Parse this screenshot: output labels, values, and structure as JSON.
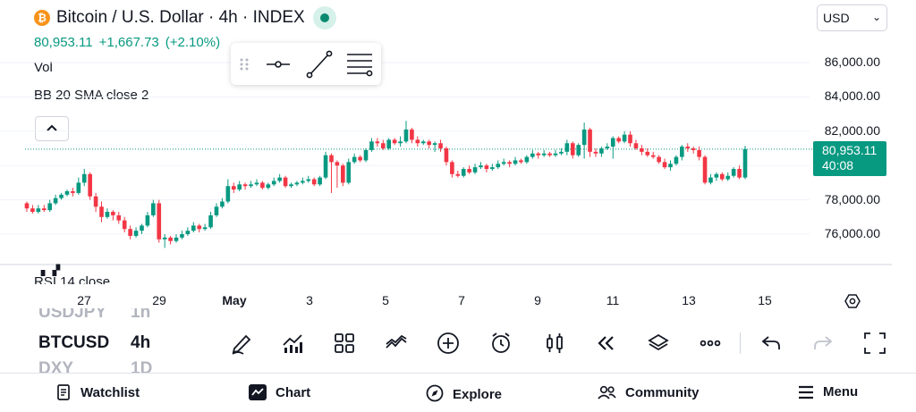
{
  "header": {
    "symbol_title": "Bitcoin / U.S. Dollar · 4h · INDEX",
    "coin_glyph": "₿",
    "currency": "USD"
  },
  "quote": {
    "last": "80,953.11",
    "change": "+1,667.73",
    "change_pct": "(+2.10%)"
  },
  "indicators": {
    "vol_label": "Vol",
    "bb_label": "BB 20 SMA close 2",
    "rsi_label": "RSI 14 close"
  },
  "price_axis": [
    "86,000.00",
    "84,000.00",
    "82,000.00",
    "78,000.00",
    "76,000.00"
  ],
  "last_price_tag": {
    "price": "80,953.11",
    "countdown": "40:08"
  },
  "time_axis": [
    "27",
    "29",
    "May",
    "3",
    "5",
    "7",
    "9",
    "11",
    "13",
    "15"
  ],
  "symbol_picker": [
    {
      "symbol": "USDJPY",
      "timeframe": "1h"
    },
    {
      "symbol": "BTCUSD",
      "timeframe": "4h"
    },
    {
      "symbol": "DXY",
      "timeframe": "1D"
    }
  ],
  "toolbar_icons": [
    "draw-icon",
    "indicators-icon",
    "layouts-icon",
    "compare-icon",
    "add-icon",
    "alert-icon",
    "chart-type-icon",
    "replay-icon",
    "layers-icon",
    "more-icon",
    "undo-icon",
    "redo-icon",
    "fullscreen-icon"
  ],
  "bottom_nav": [
    {
      "label": "Watchlist",
      "icon": "watchlist-icon"
    },
    {
      "label": "Chart",
      "icon": "chart-icon"
    },
    {
      "label": "Explore",
      "icon": "explore-icon"
    },
    {
      "label": "Community",
      "icon": "community-icon"
    },
    {
      "label": "Menu",
      "icon": "menu-icon"
    }
  ],
  "colors": {
    "up": "#089981",
    "down": "#f23645",
    "accent": "#089981"
  },
  "chart_data": {
    "type": "candlestick",
    "timeframe": "4h",
    "y_range": [
      74500,
      86800
    ],
    "candles": [
      [
        77800,
        77500,
        77900,
        77300
      ],
      [
        77500,
        77300,
        77700,
        77200
      ],
      [
        77300,
        77500,
        77700,
        77200
      ],
      [
        77500,
        77400,
        77700,
        77300
      ],
      [
        77400,
        77800,
        78000,
        77300
      ],
      [
        77800,
        78100,
        78300,
        77700
      ],
      [
        78100,
        78300,
        78400,
        78000
      ],
      [
        78300,
        78500,
        78600,
        78200
      ],
      [
        78500,
        78400,
        78700,
        78200
      ],
      [
        78400,
        79000,
        79300,
        78300
      ],
      [
        79000,
        79500,
        79800,
        78800
      ],
      [
        79500,
        78200,
        79600,
        78000
      ],
      [
        78200,
        77600,
        78400,
        77300
      ],
      [
        77600,
        77000,
        77900,
        76700
      ],
      [
        77000,
        77300,
        77500,
        76900
      ],
      [
        77300,
        77100,
        77400,
        76800
      ],
      [
        77100,
        76800,
        77300,
        76600
      ],
      [
        76800,
        76300,
        77000,
        76100
      ],
      [
        76300,
        75900,
        76500,
        75700
      ],
      [
        75900,
        76200,
        76400,
        75800
      ],
      [
        76200,
        76500,
        76600,
        76000
      ],
      [
        76500,
        77100,
        77300,
        76400
      ],
      [
        77100,
        77800,
        78000,
        77000
      ],
      [
        77800,
        75700,
        78000,
        75500
      ],
      [
        75700,
        75800,
        76000,
        75200
      ],
      [
        75800,
        75600,
        75900,
        75400
      ],
      [
        75600,
        75800,
        76000,
        75500
      ],
      [
        75800,
        76000,
        76200,
        75700
      ],
      [
        76000,
        76200,
        76400,
        75900
      ],
      [
        76200,
        76500,
        76700,
        76100
      ],
      [
        76500,
        76300,
        76600,
        76100
      ],
      [
        76300,
        76400,
        76600,
        76200
      ],
      [
        76400,
        77100,
        77300,
        76300
      ],
      [
        77100,
        77600,
        77800,
        77000
      ],
      [
        77600,
        77900,
        78100,
        77500
      ],
      [
        77900,
        78800,
        79200,
        77800
      ],
      [
        78800,
        78600,
        79000,
        78400
      ],
      [
        78600,
        78900,
        79100,
        78500
      ],
      [
        78900,
        78800,
        79000,
        78600
      ],
      [
        78800,
        78900,
        79100,
        78700
      ],
      [
        78900,
        79000,
        79200,
        78800
      ],
      [
        79000,
        78700,
        79100,
        78600
      ],
      [
        78700,
        78900,
        79000,
        78600
      ],
      [
        78900,
        79100,
        79300,
        78800
      ],
      [
        79100,
        79300,
        79500,
        79000
      ],
      [
        79300,
        78800,
        79400,
        78700
      ],
      [
        78800,
        78900,
        79000,
        78700
      ],
      [
        78900,
        79000,
        79100,
        78800
      ],
      [
        79000,
        79100,
        79300,
        78900
      ],
      [
        79100,
        79200,
        79400,
        79000
      ],
      [
        79200,
        78900,
        79300,
        78800
      ],
      [
        78900,
        79300,
        79400,
        78800
      ],
      [
        79300,
        80600,
        80800,
        79200
      ],
      [
        80600,
        80200,
        80700,
        78400
      ],
      [
        80200,
        80000,
        80300,
        78700
      ],
      [
        80000,
        79000,
        80100,
        78800
      ],
      [
        79000,
        80200,
        80400,
        78900
      ],
      [
        80200,
        80500,
        80700,
        80100
      ],
      [
        80500,
        80300,
        80600,
        80200
      ],
      [
        80300,
        80900,
        81000,
        80200
      ],
      [
        80900,
        81400,
        81600,
        80800
      ],
      [
        81400,
        81300,
        81600,
        81100
      ],
      [
        81300,
        81000,
        81500,
        80900
      ],
      [
        81000,
        81500,
        81600,
        80900
      ],
      [
        81500,
        81300,
        81600,
        81200
      ],
      [
        81300,
        81400,
        81700,
        81100
      ],
      [
        81400,
        82100,
        82600,
        81300
      ],
      [
        82100,
        81500,
        82200,
        81300
      ],
      [
        81500,
        81300,
        81700,
        81100
      ],
      [
        81300,
        81400,
        81500,
        81200
      ],
      [
        81400,
        81200,
        81500,
        81000
      ],
      [
        81200,
        81300,
        81400,
        80800
      ],
      [
        81300,
        81000,
        81500,
        80800
      ],
      [
        81000,
        80200,
        81100,
        80000
      ],
      [
        80200,
        79500,
        80300,
        79300
      ],
      [
        79500,
        79400,
        79700,
        79300
      ],
      [
        79400,
        79800,
        79900,
        79300
      ],
      [
        79800,
        79600,
        80000,
        79500
      ],
      [
        79600,
        79900,
        80100,
        79500
      ],
      [
        79900,
        80000,
        80200,
        79800
      ],
      [
        80000,
        79800,
        80100,
        79600
      ],
      [
        79800,
        79900,
        80100,
        79700
      ],
      [
        79900,
        80100,
        80300,
        79800
      ],
      [
        80100,
        80200,
        80400,
        80000
      ],
      [
        80200,
        80100,
        80300,
        79900
      ],
      [
        80100,
        80300,
        80500,
        80000
      ],
      [
        80300,
        80200,
        80400,
        80100
      ],
      [
        80200,
        80500,
        80600,
        80100
      ],
      [
        80500,
        80700,
        80900,
        80400
      ],
      [
        80700,
        80600,
        80800,
        80400
      ],
      [
        80600,
        80700,
        80900,
        80500
      ],
      [
        80700,
        80600,
        80800,
        80500
      ],
      [
        80600,
        80700,
        80900,
        80500
      ],
      [
        80700,
        80800,
        81000,
        80600
      ],
      [
        80800,
        81300,
        81500,
        80600
      ],
      [
        81300,
        80600,
        81400,
        80400
      ],
      [
        80600,
        81200,
        81300,
        80500
      ],
      [
        81200,
        82100,
        82500,
        80400
      ],
      [
        82100,
        80800,
        82200,
        80500
      ],
      [
        80800,
        80700,
        81000,
        80500
      ],
      [
        80700,
        81000,
        81100,
        80500
      ],
      [
        81000,
        81100,
        81300,
        80900
      ],
      [
        81100,
        81600,
        81700,
        80400
      ],
      [
        81600,
        81400,
        81700,
        81300
      ],
      [
        81400,
        81800,
        82000,
        81300
      ],
      [
        81800,
        81300,
        82000,
        81100
      ],
      [
        81300,
        81000,
        81500,
        80900
      ],
      [
        81000,
        80800,
        81200,
        80600
      ],
      [
        80800,
        80600,
        81000,
        80500
      ],
      [
        80600,
        80500,
        80800,
        80400
      ],
      [
        80500,
        80200,
        80600,
        80100
      ],
      [
        80200,
        79900,
        80400,
        79800
      ],
      [
        79900,
        80100,
        80300,
        79700
      ],
      [
        80100,
        80500,
        80600,
        80000
      ],
      [
        80500,
        81100,
        81200,
        80300
      ],
      [
        81100,
        81000,
        81300,
        80800
      ],
      [
        81000,
        80900,
        81100,
        80700
      ],
      [
        80900,
        80500,
        81100,
        80300
      ],
      [
        80500,
        79000,
        80600,
        78900
      ],
      [
        79000,
        79300,
        79500,
        78900
      ],
      [
        79300,
        79500,
        79600,
        79100
      ],
      [
        79500,
        79200,
        79600,
        79100
      ],
      [
        79200,
        79400,
        79600,
        79100
      ],
      [
        79400,
        79800,
        79900,
        79300
      ],
      [
        79800,
        79300,
        80000,
        79200
      ],
      [
        79300,
        80953,
        81150,
        79200
      ]
    ]
  }
}
